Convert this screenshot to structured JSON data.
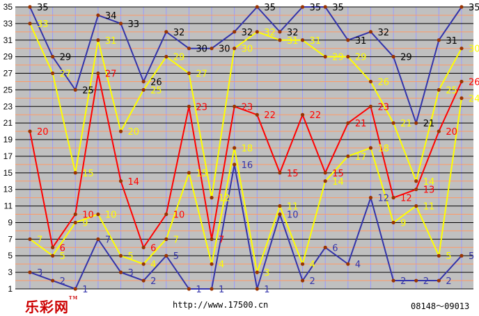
{
  "chart_data": {
    "type": "line",
    "ylim": [
      1,
      35
    ],
    "y_ticks": [
      1,
      3,
      5,
      7,
      9,
      11,
      13,
      15,
      17,
      19,
      21,
      23,
      25,
      27,
      29,
      31,
      33,
      35
    ],
    "grid": true,
    "background": "#c0c0c0",
    "grid_color": "#000000",
    "x_grid_color": "#9999ff",
    "series": [
      {
        "color": "#3333aa",
        "label_color": "#000000",
        "values": [
          35,
          29,
          25,
          34,
          33,
          26,
          32,
          30,
          30,
          32,
          35,
          32,
          35,
          35,
          31,
          32,
          29,
          21,
          31,
          35
        ]
      },
      {
        "color": "#ffff00",
        "label_color": "#ffff00",
        "values": [
          33,
          27,
          15,
          31,
          20,
          25,
          29,
          27,
          12,
          30,
          32,
          31,
          31,
          29,
          29,
          26,
          21,
          14,
          25,
          30
        ]
      },
      {
        "color": "#ff0000",
        "label_color": "#ff0000",
        "values": [
          20,
          6,
          10,
          27,
          14,
          6,
          10,
          23,
          7,
          23,
          22,
          15,
          22,
          15,
          21,
          23,
          12,
          13,
          20,
          26
        ]
      },
      {
        "color": "#ffff00",
        "label_color": "#ffff00",
        "values": [
          7,
          5,
          9,
          10,
          5,
          4,
          7,
          15,
          4,
          18,
          3,
          11,
          4,
          14,
          17,
          18,
          9,
          11,
          5,
          24
        ]
      },
      {
        "color": "#3333aa",
        "label_color": "#3333aa",
        "values": [
          3,
          2,
          1,
          7,
          3,
          2,
          5,
          1,
          1,
          16,
          1,
          10,
          2,
          6,
          4,
          12,
          2,
          2,
          2,
          5
        ]
      }
    ]
  },
  "footer": {
    "logo": "乐彩网",
    "logo_mark": "TM",
    "url": "http://www.17500.cn",
    "range": "08148～09013"
  }
}
